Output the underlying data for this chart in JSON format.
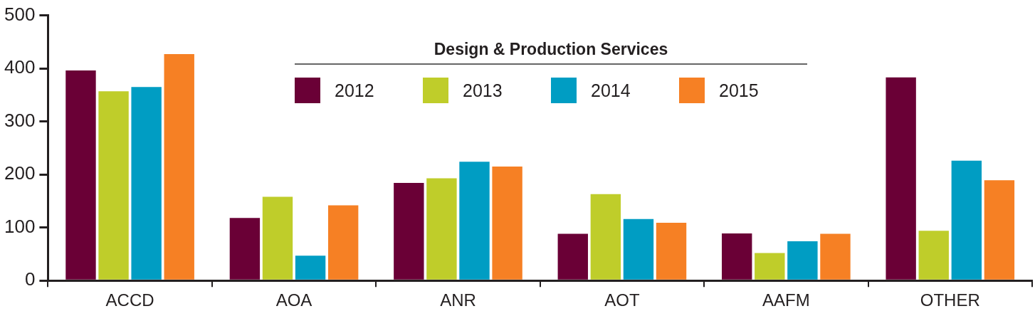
{
  "chart_data": {
    "type": "bar",
    "legend_title": "Design & Production Services",
    "categories": [
      "ACCD",
      "AOA",
      "ANR",
      "AOT",
      "AAFM",
      "OTHER"
    ],
    "series": [
      {
        "name": "2012",
        "color": "#6a0036",
        "values": [
          396,
          118,
          184,
          88,
          89,
          383
        ]
      },
      {
        "name": "2013",
        "color": "#bfcd2a",
        "values": [
          357,
          158,
          193,
          163,
          52,
          94
        ]
      },
      {
        "name": "2014",
        "color": "#009dc3",
        "values": [
          365,
          47,
          224,
          116,
          74,
          226
        ]
      },
      {
        "name": "2015",
        "color": "#f68024",
        "values": [
          427,
          142,
          215,
          109,
          88,
          189
        ]
      }
    ],
    "ylim": [
      0,
      500
    ],
    "yticks": [
      0,
      100,
      200,
      300,
      400,
      500
    ],
    "legend": "top"
  }
}
